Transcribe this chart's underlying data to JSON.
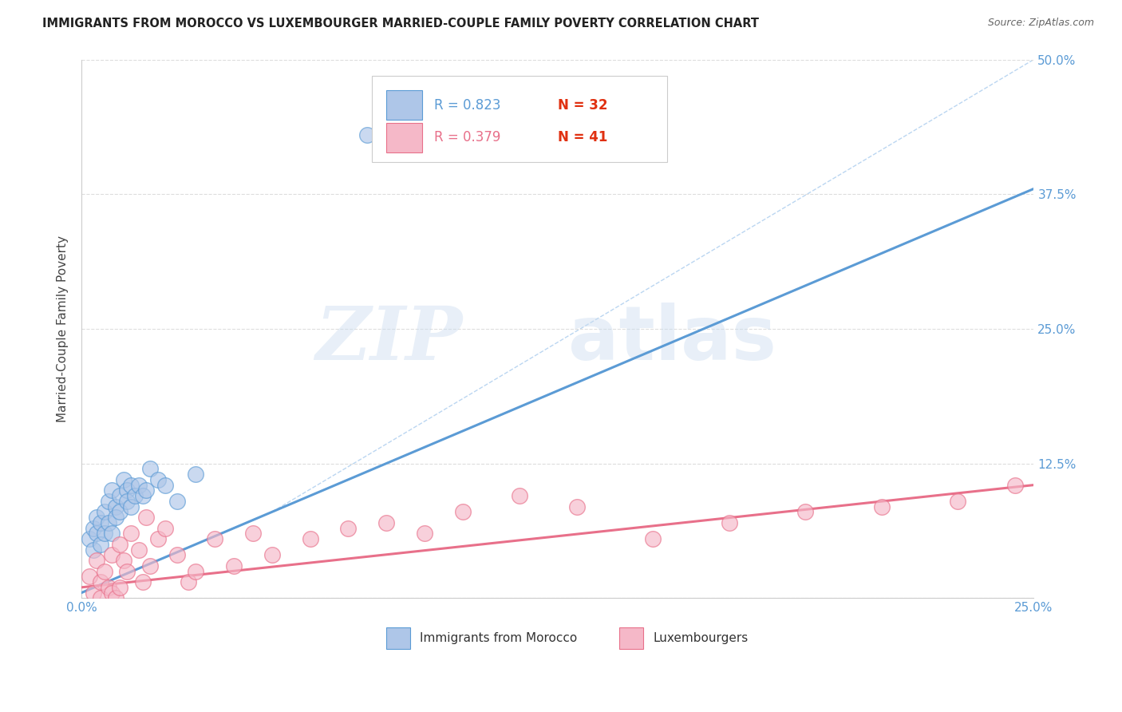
{
  "title": "IMMIGRANTS FROM MOROCCO VS LUXEMBOURGER MARRIED-COUPLE FAMILY POVERTY CORRELATION CHART",
  "source": "Source: ZipAtlas.com",
  "ylabel": "Married-Couple Family Poverty",
  "ytick_values": [
    0,
    0.125,
    0.25,
    0.375,
    0.5
  ],
  "xlim": [
    0,
    0.25
  ],
  "ylim": [
    0,
    0.5
  ],
  "legend_entries": [
    {
      "label": "Immigrants from Morocco",
      "fill_color": "#aec6e8",
      "edge_color": "#5b9bd5",
      "R": "0.823",
      "N": "32"
    },
    {
      "label": "Luxembourgers",
      "fill_color": "#f5b8c8",
      "edge_color": "#e8708a",
      "R": "0.379",
      "N": "41"
    }
  ],
  "blue_line_x": [
    0.0,
    0.25
  ],
  "blue_line_y": [
    0.005,
    0.38
  ],
  "pink_line_x": [
    0.0,
    0.25
  ],
  "pink_line_y": [
    0.01,
    0.105
  ],
  "dashed_line_x": [
    0.05,
    0.25
  ],
  "dashed_line_y": [
    0.08,
    0.5
  ],
  "watermark_zip": "ZIP",
  "watermark_atlas": "atlas",
  "blue_scatter_x": [
    0.002,
    0.003,
    0.003,
    0.004,
    0.004,
    0.005,
    0.005,
    0.006,
    0.006,
    0.007,
    0.007,
    0.008,
    0.008,
    0.009,
    0.009,
    0.01,
    0.01,
    0.011,
    0.012,
    0.012,
    0.013,
    0.013,
    0.014,
    0.015,
    0.016,
    0.017,
    0.018,
    0.02,
    0.022,
    0.025,
    0.03,
    0.075
  ],
  "blue_scatter_y": [
    0.055,
    0.065,
    0.045,
    0.075,
    0.06,
    0.07,
    0.05,
    0.08,
    0.06,
    0.09,
    0.07,
    0.06,
    0.1,
    0.085,
    0.075,
    0.095,
    0.08,
    0.11,
    0.1,
    0.09,
    0.105,
    0.085,
    0.095,
    0.105,
    0.095,
    0.1,
    0.12,
    0.11,
    0.105,
    0.09,
    0.115,
    0.43
  ],
  "pink_scatter_x": [
    0.002,
    0.003,
    0.004,
    0.005,
    0.005,
    0.006,
    0.007,
    0.008,
    0.008,
    0.009,
    0.01,
    0.01,
    0.011,
    0.012,
    0.013,
    0.015,
    0.016,
    0.017,
    0.018,
    0.02,
    0.022,
    0.025,
    0.028,
    0.03,
    0.035,
    0.04,
    0.045,
    0.05,
    0.06,
    0.07,
    0.08,
    0.09,
    0.1,
    0.115,
    0.13,
    0.15,
    0.17,
    0.19,
    0.21,
    0.23,
    0.245
  ],
  "pink_scatter_y": [
    0.02,
    0.005,
    0.035,
    0.015,
    0.0,
    0.025,
    0.01,
    0.04,
    0.005,
    0.0,
    0.05,
    0.01,
    0.035,
    0.025,
    0.06,
    0.045,
    0.015,
    0.075,
    0.03,
    0.055,
    0.065,
    0.04,
    0.015,
    0.025,
    0.055,
    0.03,
    0.06,
    0.04,
    0.055,
    0.065,
    0.07,
    0.06,
    0.08,
    0.095,
    0.085,
    0.055,
    0.07,
    0.08,
    0.085,
    0.09,
    0.105
  ],
  "N_color": "#e03010",
  "R_blue_color": "#5b9bd5",
  "R_pink_color": "#e8708a",
  "grid_color": "#dddddd",
  "axis_color": "#cccccc",
  "tick_label_color": "#5b9bd5",
  "xlabel_color": "#5b9bd5"
}
